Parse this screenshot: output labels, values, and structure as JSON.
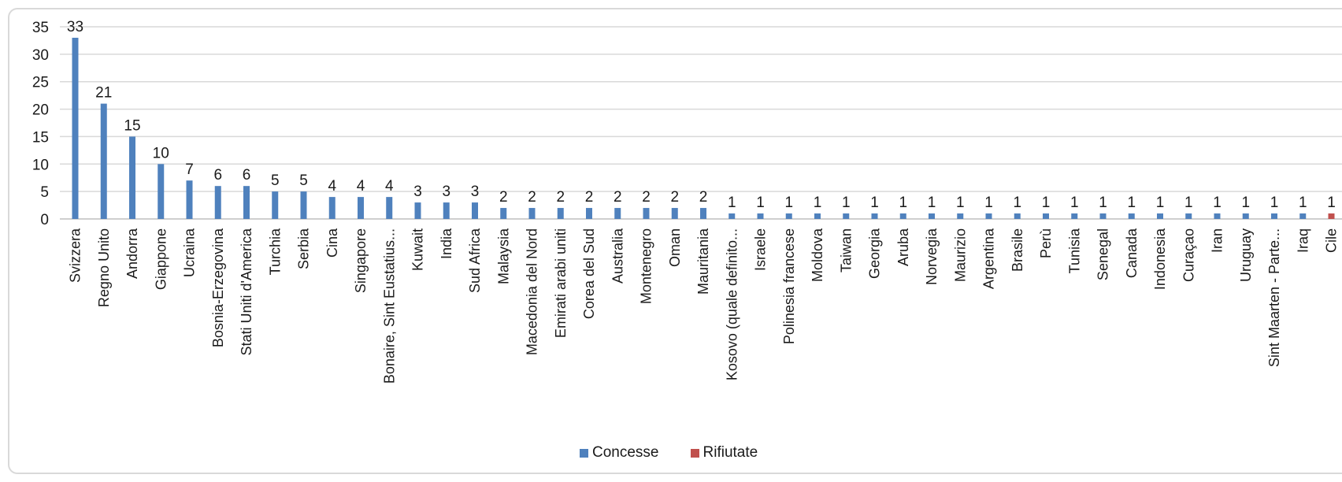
{
  "chart_data": {
    "type": "bar",
    "ylim": [
      0,
      35
    ],
    "yticks": [
      0,
      5,
      10,
      15,
      20,
      25,
      30,
      35
    ],
    "grid": true,
    "legend_position": "bottom",
    "colors": {
      "Concesse": "#4f81bd",
      "Rifiutate": "#c0504d"
    },
    "categories": [
      "Svizzera",
      "Regno Unito",
      "Andorra",
      "Giappone",
      "Ucraina",
      "Bosnia-Erzegovina",
      "Stati Uniti d'America",
      "Turchia",
      "Serbia",
      "Cina",
      "Singapore",
      "Bonaire, Sint Eustatius...",
      "Kuwait",
      "India",
      "Sud Africa",
      "Malaysia",
      "Macedonia del Nord",
      "Emirati arabi uniti",
      "Corea del Sud",
      "Australia",
      "Montenegro",
      "Oman",
      "Mauritania",
      "Kosovo (quale definito...",
      "Israele",
      "Polinesia francese",
      "Moldova",
      "Taiwan",
      "Georgia",
      "Aruba",
      "Norvegia",
      "Maurizio",
      "Argentina",
      "Brasile",
      "Perù",
      "Tunisia",
      "Senegal",
      "Canada",
      "Indonesia",
      "Curaçao",
      "Iran",
      "Uruguay",
      "Sint Maarten - Parte...",
      "Iraq",
      "Cile"
    ],
    "series": [
      {
        "name": "Concesse",
        "values": [
          33,
          21,
          15,
          10,
          7,
          6,
          6,
          5,
          5,
          4,
          4,
          4,
          3,
          3,
          3,
          2,
          2,
          2,
          2,
          2,
          2,
          2,
          2,
          1,
          1,
          1,
          1,
          1,
          1,
          1,
          1,
          1,
          1,
          1,
          1,
          1,
          1,
          1,
          1,
          1,
          1,
          1,
          1,
          1,
          0
        ]
      },
      {
        "name": "Rifiutate",
        "values": [
          0,
          0,
          0,
          0,
          0,
          0,
          0,
          0,
          0,
          0,
          0,
          0,
          0,
          0,
          0,
          0,
          0,
          0,
          0,
          0,
          0,
          0,
          0,
          0,
          0,
          0,
          0,
          0,
          0,
          0,
          0,
          0,
          0,
          0,
          0,
          0,
          0,
          0,
          0,
          0,
          0,
          0,
          0,
          0,
          1
        ]
      }
    ],
    "data_labels": [
      "33",
      "21",
      "15",
      "10",
      "7",
      "6",
      "6",
      "5",
      "5",
      "4",
      "4",
      "4",
      "3",
      "3",
      "3",
      "2",
      "2",
      "2",
      "2",
      "2",
      "2",
      "2",
      "2",
      "1",
      "1",
      "1",
      "1",
      "1",
      "1",
      "1",
      "1",
      "1",
      "1",
      "1",
      "1",
      "1",
      "1",
      "1",
      "1",
      "1",
      "1",
      "1",
      "1",
      "1",
      "1"
    ]
  },
  "legend": [
    {
      "label": "Concesse",
      "color": "#4f81bd"
    },
    {
      "label": "Rifiutate",
      "color": "#c0504d"
    }
  ]
}
